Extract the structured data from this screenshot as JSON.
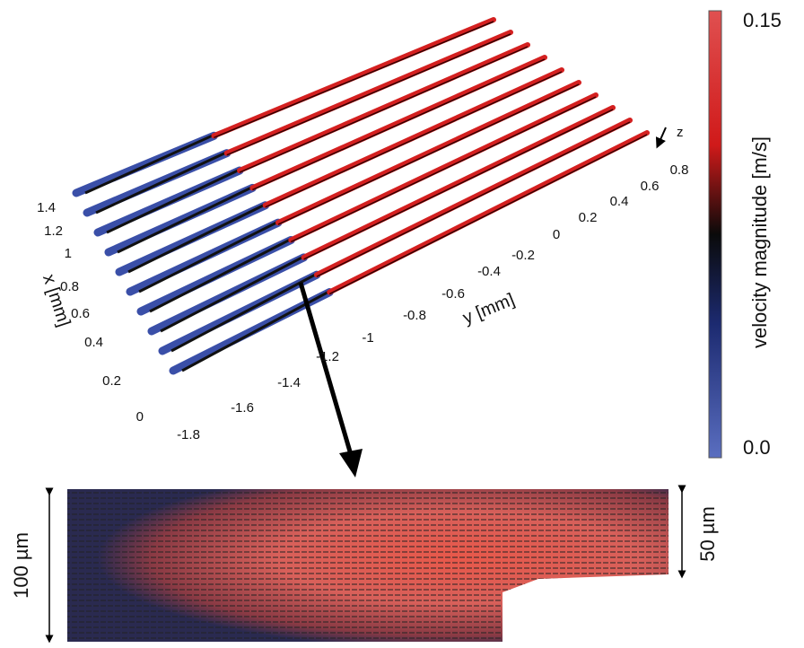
{
  "figure": {
    "x_axis": {
      "label": "x [mm]",
      "ticks": [
        "1.4",
        "1.2",
        "1",
        "0.8",
        "0.6",
        "0.4",
        "0.2",
        "0"
      ]
    },
    "y_axis": {
      "label": "y [mm]",
      "ticks": [
        "-1.8",
        "-1.6",
        "-1.4",
        "-1.2",
        "-1",
        "-0.8",
        "-0.6",
        "-0.4",
        "-0.2",
        "0",
        "0.2",
        "0.4",
        "0.6",
        "0.8"
      ]
    },
    "z_axis": {
      "label": "z"
    },
    "colorbar": {
      "label": "velocity magnitude [m/s]",
      "max_label": "0.15",
      "min_label": "0.0"
    },
    "inset": {
      "height_label": "100 µm",
      "channel_label": "50 µm"
    }
  }
}
